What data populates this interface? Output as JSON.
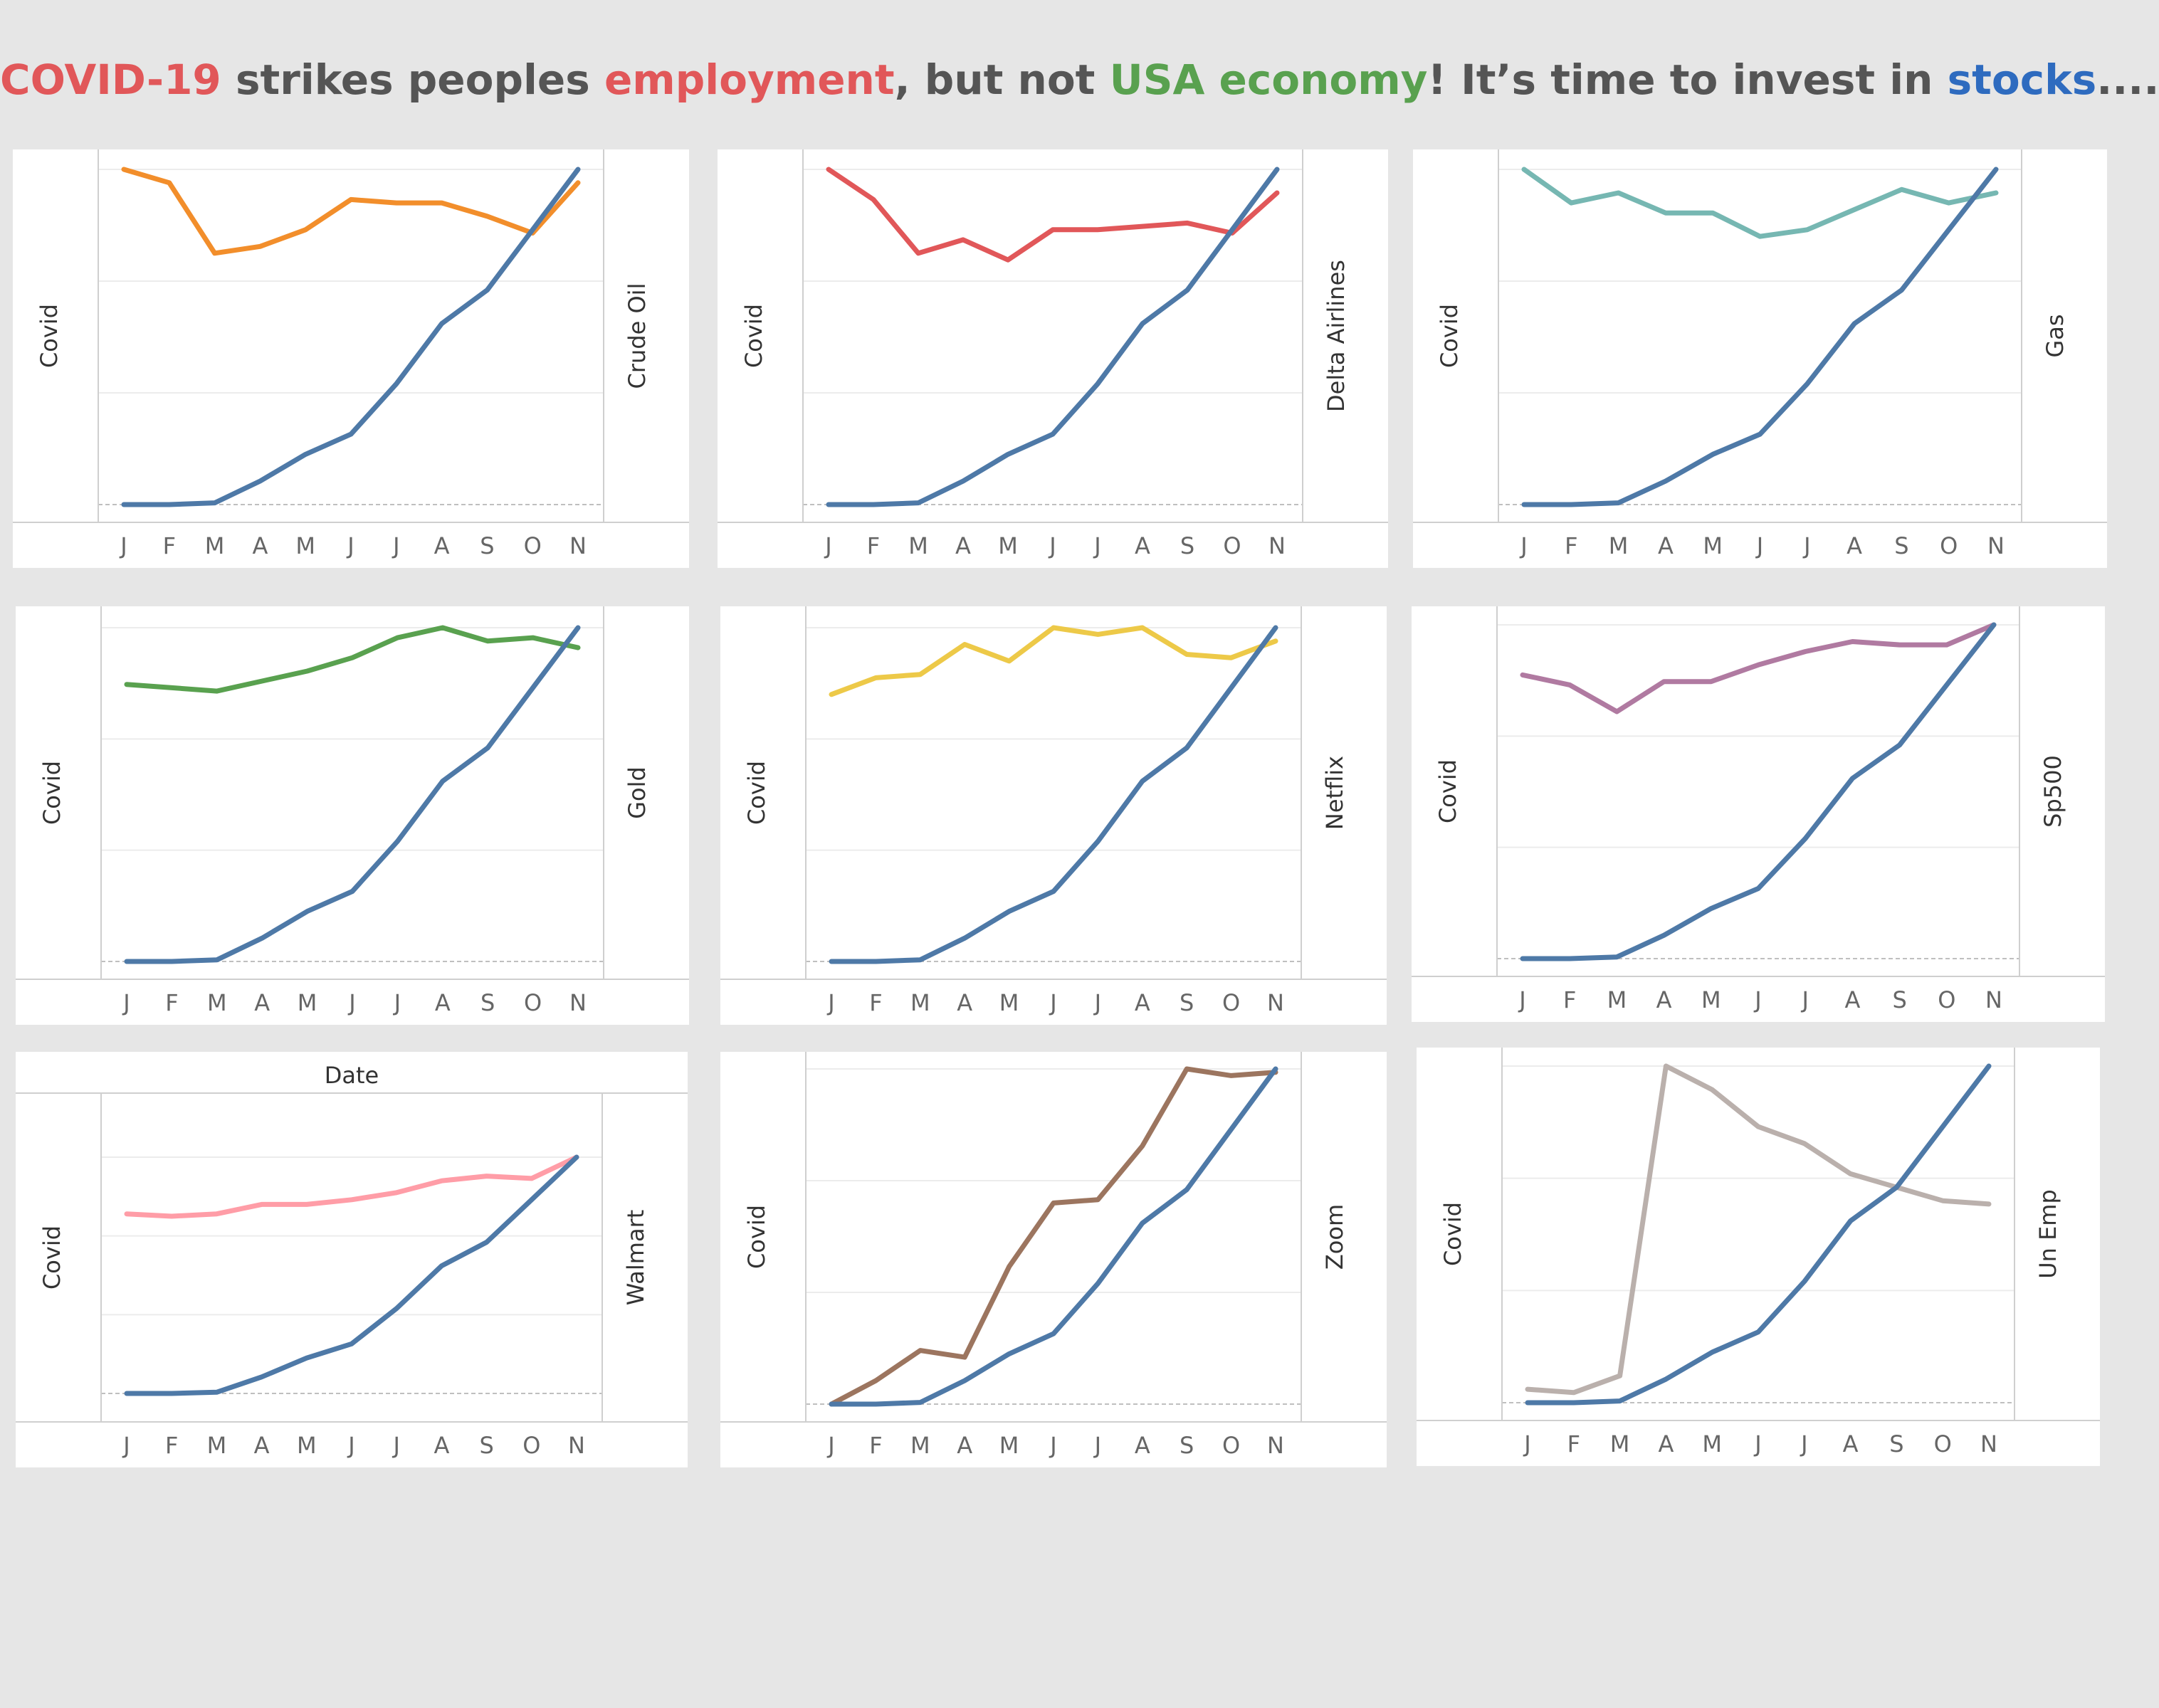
{
  "title": {
    "segments": [
      {
        "text": "COVID-19",
        "color": "#e15759"
      },
      {
        "text": " strikes peoples ",
        "color": "#555555"
      },
      {
        "text": "employment",
        "color": "#e15759"
      },
      {
        "text": ", but not ",
        "color": "#555555"
      },
      {
        "text": "USA economy",
        "color": "#59a14f"
      },
      {
        "text": "! It’s time to invest in ",
        "color": "#555555"
      },
      {
        "text": "stocks",
        "color": "#2e6bbf"
      },
      {
        "text": "....",
        "color": "#555555"
      }
    ]
  },
  "chart_data": [
    {
      "type": "line",
      "categories": [
        "J",
        "F",
        "M",
        "A",
        "M",
        "J",
        "J",
        "A",
        "S",
        "O",
        "N"
      ],
      "ylabel": "Covid",
      "y2label": "Crude Oil",
      "series": [
        {
          "name": "Covid",
          "axis": "left",
          "color": "#4e79a7",
          "values": [
            0.0,
            0.0,
            0.005,
            0.07,
            0.15,
            0.21,
            0.36,
            0.54,
            0.64,
            0.82,
            1.0
          ]
        },
        {
          "name": "Crude Oil",
          "axis": "right",
          "color": "#f28e2b",
          "values": [
            1.0,
            0.96,
            0.75,
            0.77,
            0.82,
            0.91,
            0.9,
            0.9,
            0.86,
            0.81,
            0.96
          ]
        }
      ]
    },
    {
      "type": "line",
      "categories": [
        "J",
        "F",
        "M",
        "A",
        "M",
        "J",
        "J",
        "A",
        "S",
        "O",
        "N"
      ],
      "ylabel": "Covid",
      "y2label": "Delta Airlines",
      "series": [
        {
          "name": "Covid",
          "axis": "left",
          "color": "#4e79a7",
          "values": [
            0.0,
            0.0,
            0.005,
            0.07,
            0.15,
            0.21,
            0.36,
            0.54,
            0.64,
            0.82,
            1.0
          ]
        },
        {
          "name": "Delta Airlines",
          "axis": "right",
          "color": "#e15759",
          "values": [
            1.0,
            0.91,
            0.75,
            0.79,
            0.73,
            0.82,
            0.82,
            0.83,
            0.84,
            0.81,
            0.93
          ]
        }
      ]
    },
    {
      "type": "line",
      "categories": [
        "J",
        "F",
        "M",
        "A",
        "M",
        "J",
        "J",
        "A",
        "S",
        "O",
        "N"
      ],
      "ylabel": "Covid",
      "y2label": "Gas",
      "series": [
        {
          "name": "Covid",
          "axis": "left",
          "color": "#4e79a7",
          "values": [
            0.0,
            0.0,
            0.005,
            0.07,
            0.15,
            0.21,
            0.36,
            0.54,
            0.64,
            0.82,
            1.0
          ]
        },
        {
          "name": "Gas",
          "axis": "right",
          "color": "#76b7b2",
          "values": [
            1.0,
            0.9,
            0.93,
            0.87,
            0.87,
            0.8,
            0.82,
            0.88,
            0.94,
            0.9,
            0.93
          ]
        }
      ]
    },
    {
      "type": "line",
      "categories": [
        "J",
        "F",
        "M",
        "A",
        "M",
        "J",
        "J",
        "A",
        "S",
        "O",
        "N"
      ],
      "ylabel": "Covid",
      "y2label": "Gold",
      "series": [
        {
          "name": "Covid",
          "axis": "left",
          "color": "#4e79a7",
          "values": [
            0.0,
            0.0,
            0.005,
            0.07,
            0.15,
            0.21,
            0.36,
            0.54,
            0.64,
            0.82,
            1.0
          ]
        },
        {
          "name": "Gold",
          "axis": "right",
          "color": "#59a14f",
          "values": [
            0.83,
            0.82,
            0.81,
            0.84,
            0.87,
            0.91,
            0.97,
            1.0,
            0.96,
            0.97,
            0.94
          ]
        }
      ]
    },
    {
      "type": "line",
      "categories": [
        "J",
        "F",
        "M",
        "A",
        "M",
        "J",
        "J",
        "A",
        "S",
        "O",
        "N"
      ],
      "ylabel": "Covid",
      "y2label": "Netflix",
      "series": [
        {
          "name": "Covid",
          "axis": "left",
          "color": "#4e79a7",
          "values": [
            0.0,
            0.0,
            0.005,
            0.07,
            0.15,
            0.21,
            0.36,
            0.54,
            0.64,
            0.82,
            1.0
          ]
        },
        {
          "name": "Netflix",
          "axis": "right",
          "color": "#edc948",
          "values": [
            0.8,
            0.85,
            0.86,
            0.95,
            0.9,
            1.0,
            0.98,
            1.0,
            0.92,
            0.91,
            0.96
          ]
        }
      ]
    },
    {
      "type": "line",
      "categories": [
        "J",
        "F",
        "M",
        "A",
        "M",
        "J",
        "J",
        "A",
        "S",
        "O",
        "N"
      ],
      "ylabel": "Covid",
      "y2label": "Sp500",
      "series": [
        {
          "name": "Covid",
          "axis": "left",
          "color": "#4e79a7",
          "values": [
            0.0,
            0.0,
            0.005,
            0.07,
            0.15,
            0.21,
            0.36,
            0.54,
            0.64,
            0.82,
            1.0
          ]
        },
        {
          "name": "Sp500",
          "axis": "right",
          "color": "#b07aa1",
          "values": [
            0.85,
            0.82,
            0.74,
            0.83,
            0.83,
            0.88,
            0.92,
            0.95,
            0.94,
            0.94,
            1.0
          ]
        }
      ]
    },
    {
      "type": "line",
      "categories": [
        "J",
        "F",
        "M",
        "A",
        "M",
        "J",
        "J",
        "A",
        "S",
        "O",
        "N"
      ],
      "ylabel": "Covid",
      "y2label": "Walmart",
      "header": "Date",
      "series": [
        {
          "name": "Covid",
          "axis": "left",
          "color": "#4e79a7",
          "values": [
            0.0,
            0.0,
            0.005,
            0.07,
            0.15,
            0.21,
            0.36,
            0.54,
            0.64,
            0.82,
            1.0
          ]
        },
        {
          "name": "Walmart",
          "axis": "right",
          "color": "#ff9da7",
          "values": [
            0.76,
            0.75,
            0.76,
            0.8,
            0.8,
            0.82,
            0.85,
            0.9,
            0.92,
            0.91,
            1.0
          ]
        }
      ]
    },
    {
      "type": "line",
      "categories": [
        "J",
        "F",
        "M",
        "A",
        "M",
        "J",
        "J",
        "A",
        "S",
        "O",
        "N"
      ],
      "ylabel": "Covid",
      "y2label": "Zoom",
      "series": [
        {
          "name": "Covid",
          "axis": "left",
          "color": "#4e79a7",
          "values": [
            0.0,
            0.0,
            0.005,
            0.07,
            0.15,
            0.21,
            0.36,
            0.54,
            0.64,
            0.82,
            1.0
          ]
        },
        {
          "name": "Zoom",
          "axis": "right",
          "color": "#9c755f",
          "values": [
            0.0,
            0.07,
            0.16,
            0.14,
            0.41,
            0.6,
            0.61,
            0.77,
            1.0,
            0.98,
            0.99
          ]
        }
      ]
    },
    {
      "type": "line",
      "categories": [
        "J",
        "F",
        "M",
        "A",
        "M",
        "J",
        "J",
        "A",
        "S",
        "O",
        "N"
      ],
      "ylabel": "Covid",
      "y2label": "Un Emp",
      "series": [
        {
          "name": "Covid",
          "axis": "left",
          "color": "#4e79a7",
          "values": [
            0.0,
            0.0,
            0.005,
            0.07,
            0.15,
            0.21,
            0.36,
            0.54,
            0.64,
            0.82,
            1.0
          ]
        },
        {
          "name": "Un Emp",
          "axis": "right",
          "color": "#bab0ac",
          "values": [
            0.04,
            0.03,
            0.08,
            1.0,
            0.93,
            0.82,
            0.77,
            0.68,
            0.64,
            0.6,
            0.59
          ]
        }
      ]
    }
  ]
}
